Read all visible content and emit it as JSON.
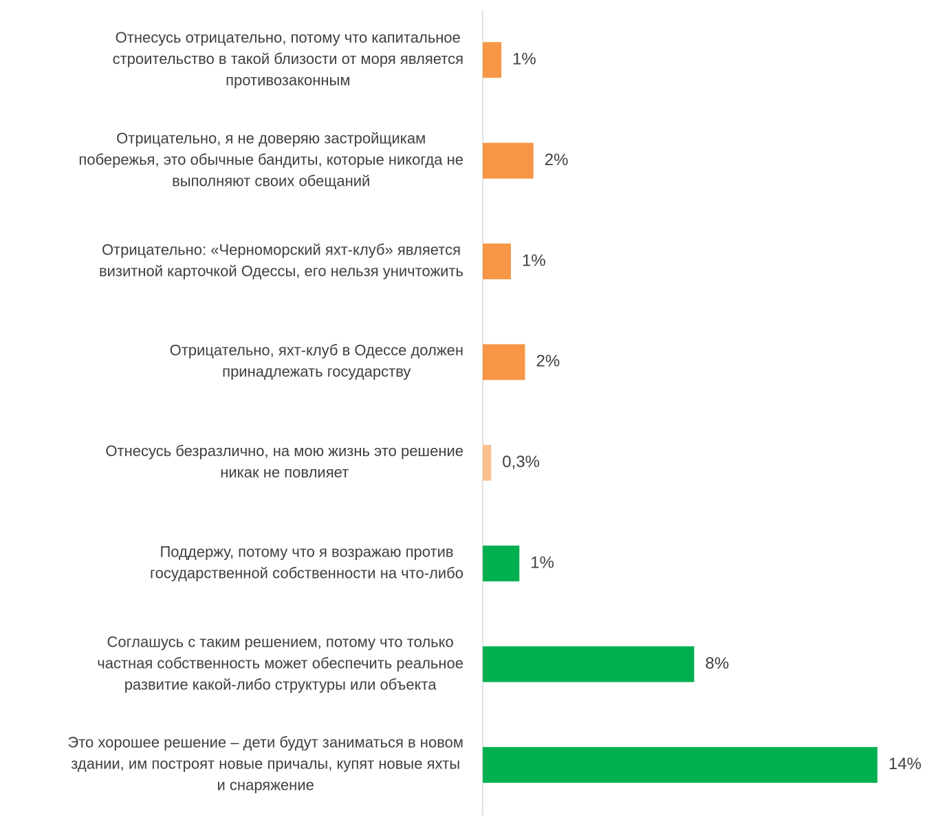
{
  "chart_data": {
    "type": "barh",
    "categories": [
      [
        "Отнесусь отрицательно, потому что капитальное",
        "строительство в такой близости от моря является",
        "противозаконным"
      ],
      [
        "Отрицательно, я не доверяю застройщикам",
        "побережья, это обычные бандиты, которые никогда не",
        "выполняют своих обещаний"
      ],
      [
        "Отрицательно: «Черноморский яхт-клуб» является",
        "визитной карточкой Одессы, его нельзя уничтожить"
      ],
      [
        "Отрицательно, яхт-клуб в Одессе должен",
        "принадлежать государству"
      ],
      [
        "Отнесусь безразлично, на мою жизнь это решение",
        "никак не повлияет"
      ],
      [
        "Поддержу, потому что я возражаю против",
        "государственной собственности на что-либо"
      ],
      [
        "Соглашусь с таким решением, потому что только",
        "частная собственность может обеспечить реальное",
        "развитие какой-либо структуры или объекта"
      ],
      [
        "Это хорошее решение – дети будут заниматься в новом",
        "здании, им построят новые причалы, купят новые яхты",
        "и снаряжение"
      ]
    ],
    "values": [
      0.66,
      1.8,
      1.0,
      1.5,
      0.3,
      1.3,
      7.5,
      14.0
    ],
    "value_labels": [
      "1%",
      "2%",
      "1%",
      "2%",
      "0,3%",
      "1%",
      "8%",
      "14%"
    ],
    "colors": [
      "#f79646",
      "#f79646",
      "#f79646",
      "#f79646",
      "#fac090",
      "#00b050",
      "#00b050",
      "#00b050"
    ],
    "xlim": [
      0,
      15
    ]
  }
}
